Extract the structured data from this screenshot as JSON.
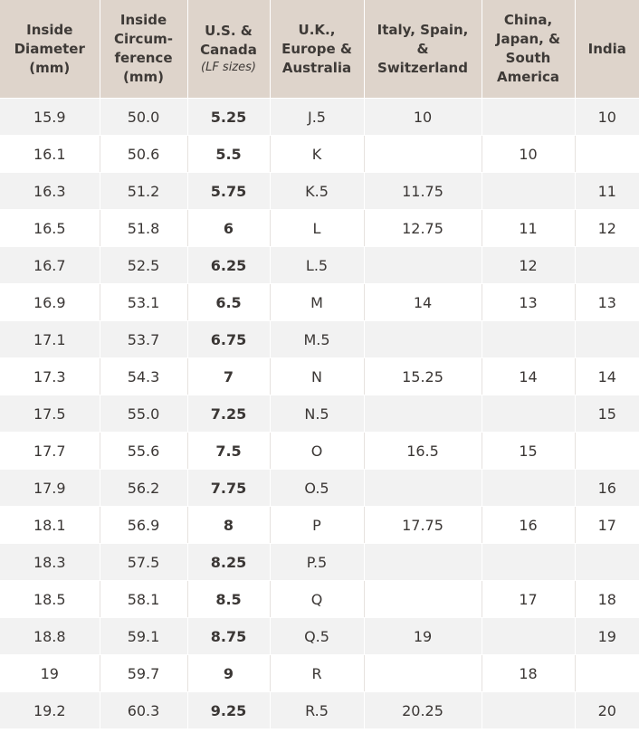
{
  "headers": [
    {
      "lines": [
        "Inside",
        "Diameter",
        "(mm)"
      ],
      "sub": ""
    },
    {
      "lines": [
        "Inside",
        "Circum-",
        "ference",
        "(mm)"
      ],
      "sub": ""
    },
    {
      "lines": [
        "U.S. &",
        "Canada"
      ],
      "sub": "(LF sizes)"
    },
    {
      "lines": [
        "U.K.,",
        "Europe &",
        "Australia"
      ],
      "sub": ""
    },
    {
      "lines": [
        "Italy, Spain,",
        "&",
        "Switzerland"
      ],
      "sub": ""
    },
    {
      "lines": [
        "China,",
        "Japan, &",
        "South",
        "America"
      ],
      "sub": ""
    },
    {
      "lines": [
        "India"
      ],
      "sub": ""
    }
  ],
  "rows": [
    [
      "15.9",
      "50.0",
      "5.25",
      "J.5",
      "10",
      "",
      "10"
    ],
    [
      "16.1",
      "50.6",
      "5.5",
      "K",
      "",
      "10",
      ""
    ],
    [
      "16.3",
      "51.2",
      "5.75",
      "K.5",
      "11.75",
      "",
      "11"
    ],
    [
      "16.5",
      "51.8",
      "6",
      "L",
      "12.75",
      "11",
      "12"
    ],
    [
      "16.7",
      "52.5",
      "6.25",
      "L.5",
      "",
      "12",
      ""
    ],
    [
      "16.9",
      "53.1",
      "6.5",
      "M",
      "14",
      "13",
      "13"
    ],
    [
      "17.1",
      "53.7",
      "6.75",
      "M.5",
      "",
      "",
      ""
    ],
    [
      "17.3",
      "54.3",
      "7",
      "N",
      "15.25",
      "14",
      "14"
    ],
    [
      "17.5",
      "55.0",
      "7.25",
      "N.5",
      "",
      "",
      "15"
    ],
    [
      "17.7",
      "55.6",
      "7.5",
      "O",
      "16.5",
      "15",
      ""
    ],
    [
      "17.9",
      "56.2",
      "7.75",
      "O.5",
      "",
      "",
      "16"
    ],
    [
      "18.1",
      "56.9",
      "8",
      "P",
      "17.75",
      "16",
      "17"
    ],
    [
      "18.3",
      "57.5",
      "8.25",
      "P.5",
      "",
      "",
      ""
    ],
    [
      "18.5",
      "58.1",
      "8.5",
      "Q",
      "",
      "17",
      "18"
    ],
    [
      "18.8",
      "59.1",
      "8.75",
      "Q.5",
      "19",
      "",
      "19"
    ],
    [
      "19",
      "59.7",
      "9",
      "R",
      "",
      "18",
      ""
    ],
    [
      "19.2",
      "60.3",
      "9.25",
      "R.5",
      "20.25",
      "",
      "20"
    ]
  ]
}
